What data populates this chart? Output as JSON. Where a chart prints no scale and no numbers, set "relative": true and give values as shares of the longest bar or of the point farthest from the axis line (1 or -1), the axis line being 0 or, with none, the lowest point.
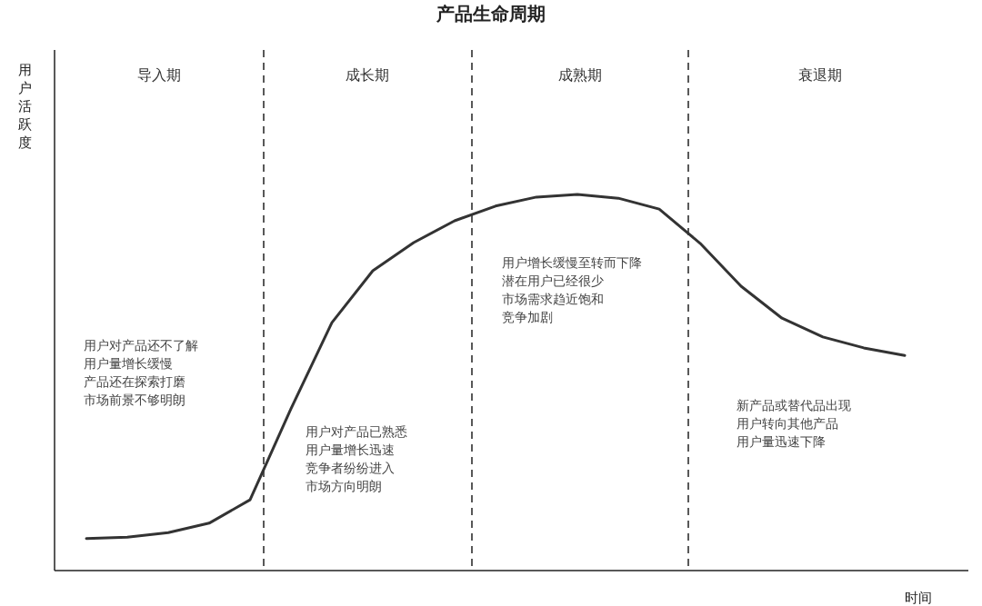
{
  "chart_data": {
    "type": "line",
    "title": "产品生命周期",
    "xlabel": "时间",
    "ylabel": "用户活跃度",
    "relative": true,
    "marker": "none",
    "line_style": "solid",
    "categories": [
      null,
      null,
      null,
      null,
      null,
      null,
      null,
      null,
      null,
      null,
      null,
      null,
      null,
      null,
      null,
      null,
      null,
      null,
      null,
      null,
      null
    ],
    "series": [
      {
        "color": "#333333",
        "values": [
          0.085,
          0.089,
          0.101,
          0.126,
          0.188,
          0.43,
          0.659,
          0.797,
          0.872,
          0.93,
          0.969,
          0.993,
          1,
          0.99,
          0.961,
          0.87,
          0.756,
          0.671,
          0.621,
          0.592,
          0.572
        ]
      }
    ],
    "annotations": [
      "导入期",
      "成长期",
      "成熟期",
      "衰退期",
      "用户对产品还不了解",
      "用户量增长缓慢",
      "产品还在探索打磨",
      "市场前景不够明朗",
      "用户对产品已熟悉",
      "用户量增长迅速",
      "竞争者纷纷进入",
      "市场方向明朗",
      "用户增长缓慢至转而下降",
      "潜在用户已经很少",
      "市场需求趋近饱和",
      "竞争加剧",
      "新产品或替代品出现",
      "用户转向其他产品",
      "用户量迅速下降"
    ]
  }
}
